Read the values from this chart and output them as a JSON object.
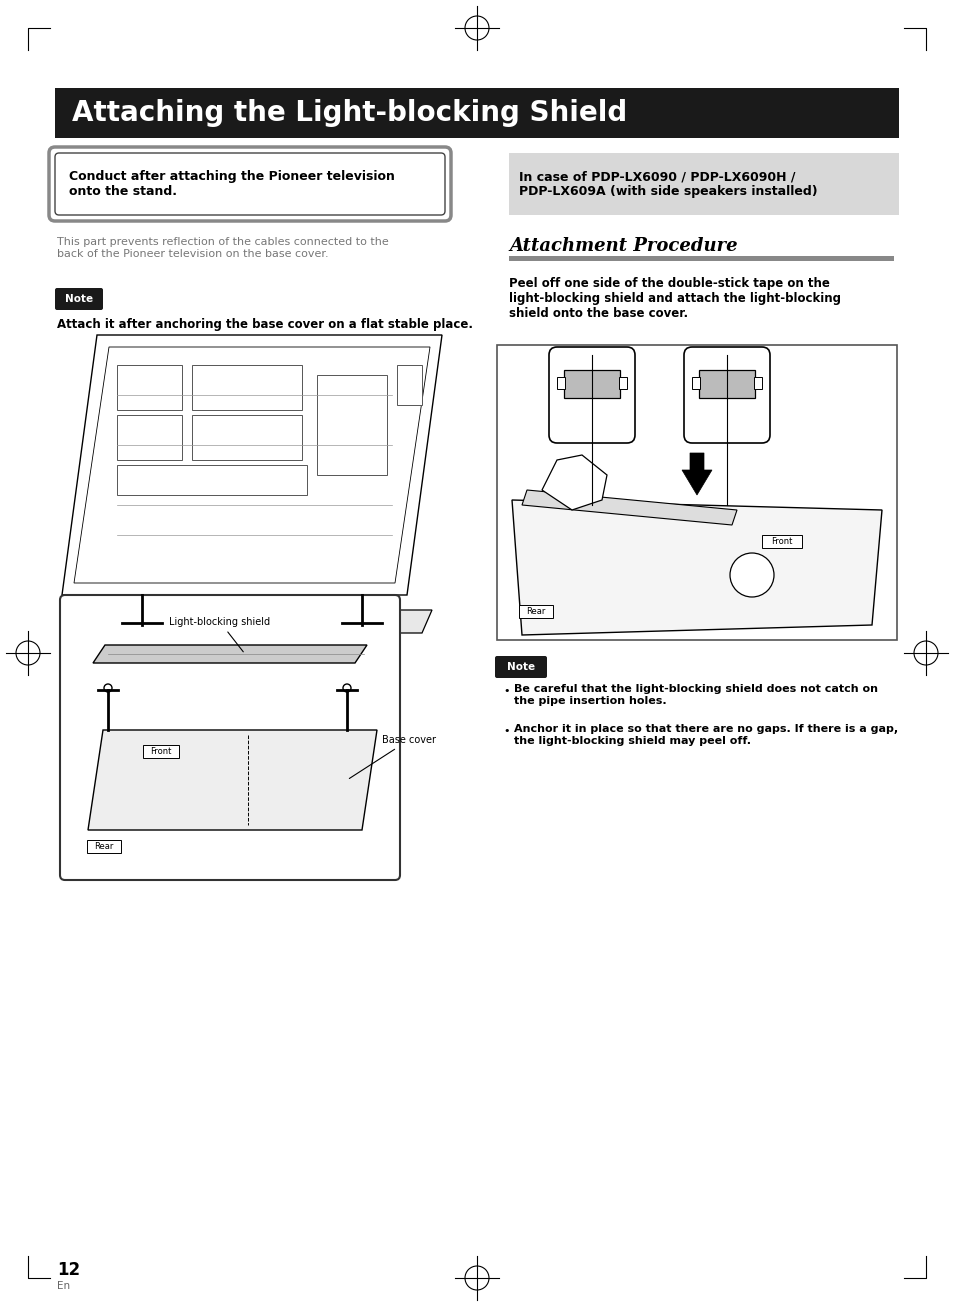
{
  "page_bg": "#ffffff",
  "title_text": "Attaching the Light-blocking Shield",
  "title_bg": "#1a1a1a",
  "title_fg": "#ffffff",
  "title_fontsize": 20,
  "left_box_text": "Conduct after attaching the Pioneer television\nonto the stand.",
  "right_box_text": "In case of PDP-LX6090 / PDP-LX6090H /\nPDP-LX609A (with side speakers installed)",
  "left_desc": "This part prevents reflection of the cables connected to the\nback of the Pioneer television on the base cover.",
  "note_label": "Note",
  "note_text": "Attach it after anchoring the base cover on a flat stable place.",
  "attachment_procedure_title": "Attachment Procedure",
  "attachment_procedure_desc": "Peel off one side of the double-stick tape on the\nlight-blocking shield and attach the light-blocking\nshield onto the base cover.",
  "right_note_bullets": [
    "Be careful that the light-blocking shield does not catch on\nthe pipe insertion holes.",
    "Anchor it in place so that there are no gaps. If there is a gap,\nthe light-blocking shield may peel off."
  ],
  "page_number": "12",
  "page_suffix": "En",
  "left_label_front": "Front",
  "left_label_rear": "Rear",
  "left_label_shield": "Light-blocking shield",
  "left_label_base": "Base cover",
  "right_label_front": "Front",
  "right_label_rear": "Rear"
}
